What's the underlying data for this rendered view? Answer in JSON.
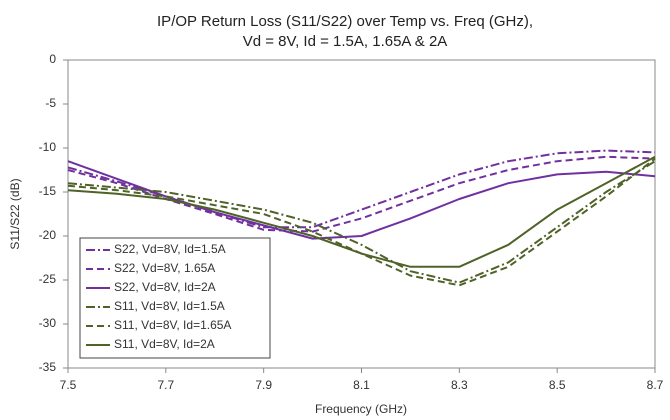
{
  "chart_data": {
    "type": "line",
    "title": [
      "IP/OP Return Loss (S11/S22) over Temp vs. Freq (GHz),",
      "Vd = 8V, Id = 1.5A, 1.65A & 2A"
    ],
    "x_label": "Frequency (GHz)",
    "y_label": "S11/S22 (dB)",
    "x": [
      7.5,
      7.6,
      7.7,
      7.8,
      7.9,
      8.0,
      8.1,
      8.2,
      8.3,
      8.4,
      8.5,
      8.6,
      8.7
    ],
    "xlim": [
      7.5,
      8.7
    ],
    "xticks": [
      7.5,
      7.7,
      7.9,
      8.1,
      8.3,
      8.5,
      8.7
    ],
    "ylim": [
      -35,
      0
    ],
    "yticks": [
      0,
      -5,
      -10,
      -15,
      -20,
      -25,
      -30,
      -35
    ],
    "legend": "lower left",
    "series": [
      {
        "name": "S22, Vd=8V, Id=1.5A",
        "color": "#7030a0",
        "dash": "dashdot",
        "values": [
          -12.2,
          -13.8,
          -15.5,
          -17.3,
          -19,
          -19,
          -17,
          -15,
          -13,
          -11.5,
          -10.6,
          -10.3,
          -10.5
        ]
      },
      {
        "name": "S22, Vd=8V, 1.65A",
        "color": "#7030a0",
        "dash": "dash",
        "values": [
          -12.5,
          -14,
          -15.8,
          -17.5,
          -19.3,
          -19.5,
          -18,
          -16,
          -14,
          -12.5,
          -11.5,
          -11,
          -11.2
        ]
      },
      {
        "name": "S22, Vd=8V, Id=2A",
        "color": "#7030a0",
        "dash": "solid",
        "values": [
          -11.5,
          -13.5,
          -15.5,
          -17.3,
          -18.8,
          -20.3,
          -20,
          -18,
          -15.8,
          -14,
          -13,
          -12.7,
          -13.2
        ]
      },
      {
        "name": "S11, Vd=8V, Id=1.5A",
        "color": "#4f6228",
        "dash": "dashdot",
        "values": [
          -14,
          -14.5,
          -15,
          -16,
          -17,
          -18.5,
          -21,
          -24,
          -25.3,
          -23,
          -19,
          -15,
          -11.5
        ]
      },
      {
        "name": "S11, Vd=8V, Id=1.65A",
        "color": "#4f6228",
        "dash": "dash",
        "values": [
          -14.3,
          -14.8,
          -15.5,
          -16.5,
          -17.5,
          -19.5,
          -22,
          -24.5,
          -25.6,
          -23.5,
          -19.5,
          -15.5,
          -11.2
        ]
      },
      {
        "name": "S11, Vd=8V, Id=2A",
        "color": "#4f6228",
        "dash": "solid",
        "values": [
          -14.8,
          -15.2,
          -15.8,
          -17,
          -18.5,
          -20,
          -22,
          -23.5,
          -23.5,
          -21,
          -17,
          -14,
          -11
        ]
      }
    ]
  }
}
